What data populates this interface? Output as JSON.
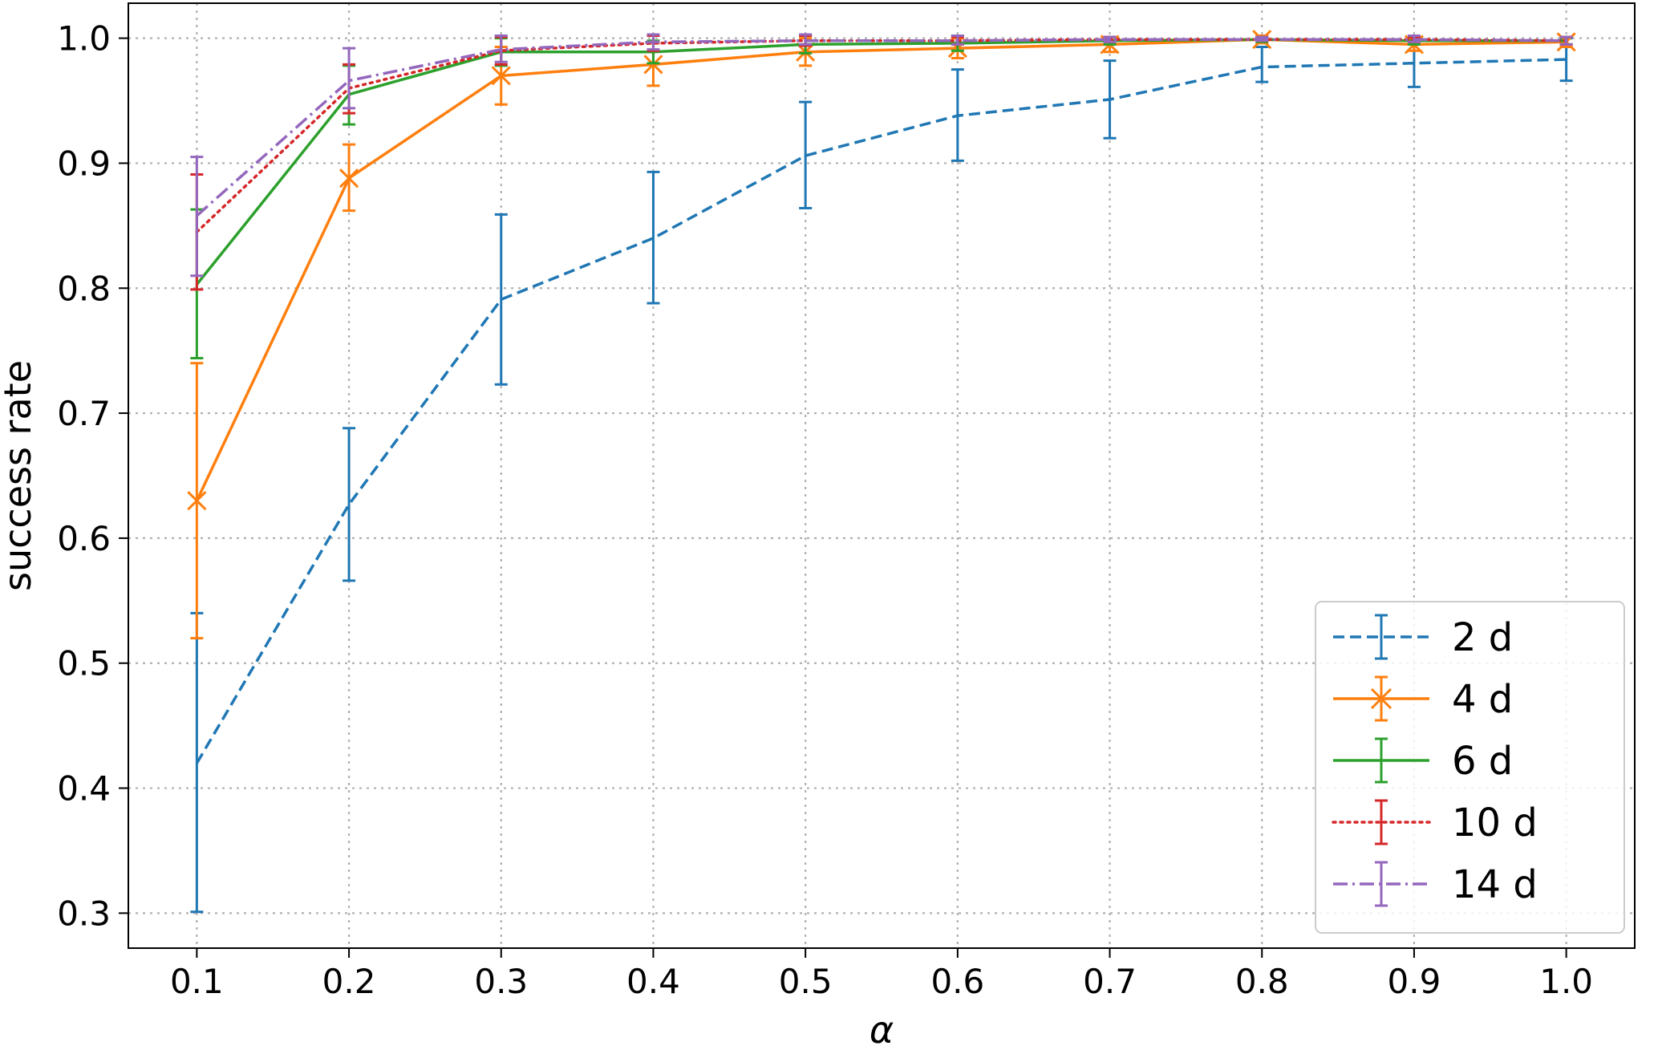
{
  "chart_data": {
    "type": "line",
    "title": "",
    "xlabel": "α",
    "ylabel": "success rate",
    "xlim": [
      0.055,
      1.045
    ],
    "ylim": [
      0.272,
      1.028
    ],
    "xticks": [
      0.1,
      0.2,
      0.3,
      0.4,
      0.5,
      0.6,
      0.7,
      0.8,
      0.9,
      1.0
    ],
    "xtick_labels": [
      "0.1",
      "0.2",
      "0.3",
      "0.4",
      "0.5",
      "0.6",
      "0.7",
      "0.8",
      "0.9",
      "1.0"
    ],
    "yticks": [
      0.3,
      0.4,
      0.5,
      0.6,
      0.7,
      0.8,
      0.9,
      1.0
    ],
    "ytick_labels": [
      "0.3",
      "0.4",
      "0.5",
      "0.6",
      "0.7",
      "0.8",
      "0.9",
      "1.0"
    ],
    "grid": true,
    "legend_position": "lower-right",
    "x": [
      0.1,
      0.2,
      0.3,
      0.4,
      0.5,
      0.6,
      0.7,
      0.8,
      0.9,
      1.0
    ],
    "series": [
      {
        "name": "2 d",
        "color": "#1f77b4",
        "line_style": "dashed",
        "marker": "none",
        "values": [
          0.42,
          0.627,
          0.791,
          0.84,
          0.906,
          0.938,
          0.951,
          0.977,
          0.98,
          0.983
        ],
        "lower": [
          0.301,
          0.566,
          0.723,
          0.788,
          0.864,
          0.902,
          0.92,
          0.965,
          0.961,
          0.966
        ],
        "upper": [
          0.54,
          0.688,
          0.859,
          0.893,
          0.949,
          0.975,
          0.982,
          0.993,
          0.999,
          1.0
        ]
      },
      {
        "name": "4 d",
        "color": "#ff7f0e",
        "line_style": "solid",
        "marker": "x",
        "values": [
          0.63,
          0.888,
          0.97,
          0.979,
          0.989,
          0.992,
          0.995,
          0.999,
          0.995,
          0.997
        ],
        "lower": [
          0.52,
          0.862,
          0.947,
          0.962,
          0.978,
          0.984,
          0.989,
          0.996,
          0.99,
          0.993
        ],
        "upper": [
          0.74,
          0.915,
          0.993,
          0.996,
          1.0,
          1.0,
          1.001,
          1.002,
          1.0,
          1.001
        ]
      },
      {
        "name": "6 d",
        "color": "#2ca02c",
        "line_style": "solid",
        "marker": "none",
        "values": [
          0.803,
          0.955,
          0.989,
          0.989,
          0.995,
          0.996,
          0.998,
          0.999,
          0.998,
          0.998
        ],
        "lower": [
          0.744,
          0.931,
          0.978,
          0.98,
          0.988,
          0.99,
          0.995,
          0.997,
          0.995,
          0.995
        ],
        "upper": [
          0.863,
          0.978,
          1.0,
          0.998,
          1.002,
          1.002,
          1.001,
          1.001,
          1.001,
          1.001
        ]
      },
      {
        "name": "10 d",
        "color": "#d62728",
        "line_style": "dotted",
        "marker": "none",
        "values": [
          0.845,
          0.96,
          0.99,
          0.996,
          0.998,
          0.998,
          0.999,
          0.999,
          0.999,
          0.998
        ],
        "lower": [
          0.799,
          0.94,
          0.979,
          0.99,
          0.994,
          0.995,
          0.997,
          0.998,
          0.997,
          0.995
        ],
        "upper": [
          0.891,
          0.979,
          1.001,
          1.002,
          1.002,
          1.001,
          1.001,
          1.001,
          1.001,
          1.001
        ]
      },
      {
        "name": "14 d",
        "color": "#9467bd",
        "line_style": "dashdot",
        "marker": "none",
        "values": [
          0.858,
          0.966,
          0.991,
          0.997,
          0.998,
          0.998,
          0.999,
          0.999,
          0.999,
          0.998
        ],
        "lower": [
          0.81,
          0.944,
          0.981,
          0.991,
          0.995,
          0.995,
          0.997,
          0.998,
          0.997,
          0.995
        ],
        "upper": [
          0.905,
          0.992,
          1.002,
          1.003,
          1.003,
          1.002,
          1.001,
          1.001,
          1.002,
          1.001
        ]
      }
    ]
  }
}
